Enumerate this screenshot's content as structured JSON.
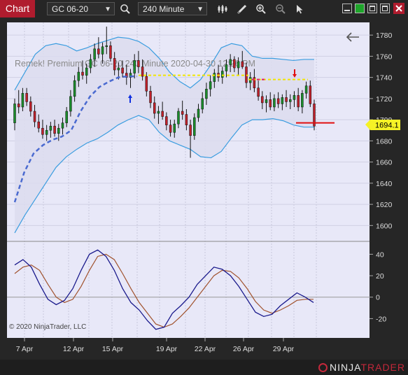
{
  "toolbar": {
    "tab_label": "Chart",
    "instrument": "GC 06-20",
    "interval": "240 Minute"
  },
  "chart": {
    "watermark": "Remek!  Premium   GC 06-20   240 Minute  2020-04-30 12:26 PM",
    "copyright": "© 2020 NinjaTrader, LLC",
    "last_price": "1694.1"
  },
  "branding": {
    "logo_left": "NINJA",
    "logo_right": "TRADER"
  },
  "chart_data": {
    "type": "candlestick",
    "x_tick_labels": [
      "7 Apr",
      "12 Apr",
      "15 Apr",
      "19 Apr",
      "22 Apr",
      "26 Apr",
      "29 Apr"
    ],
    "price_axis": {
      "ticks": [
        1780,
        1760,
        1740,
        1720,
        1700,
        1680,
        1660,
        1640,
        1620,
        1600
      ],
      "range": [
        1585,
        1792
      ]
    },
    "oscillator_axis": {
      "ticks": [
        40,
        20,
        0,
        -20
      ],
      "range": [
        -38,
        52
      ]
    },
    "candles": [
      [
        1697,
        1720,
        1690,
        1715
      ],
      [
        1715,
        1728,
        1706,
        1712
      ],
      [
        1712,
        1730,
        1708,
        1725
      ],
      [
        1725,
        1730,
        1713,
        1717
      ],
      [
        1717,
        1722,
        1703,
        1708
      ],
      [
        1708,
        1714,
        1693,
        1698
      ],
      [
        1698,
        1705,
        1688,
        1692
      ],
      [
        1692,
        1700,
        1682,
        1686
      ],
      [
        1686,
        1695,
        1680,
        1690
      ],
      [
        1690,
        1698,
        1683,
        1694
      ],
      [
        1694,
        1700,
        1684,
        1687
      ],
      [
        1687,
        1696,
        1680,
        1692
      ],
      [
        1692,
        1702,
        1686,
        1697
      ],
      [
        1697,
        1712,
        1693,
        1708
      ],
      [
        1708,
        1728,
        1703,
        1722
      ],
      [
        1722,
        1742,
        1717,
        1737
      ],
      [
        1737,
        1750,
        1731,
        1745
      ],
      [
        1745,
        1756,
        1738,
        1742
      ],
      [
        1742,
        1753,
        1734,
        1749
      ],
      [
        1749,
        1762,
        1744,
        1757
      ],
      [
        1757,
        1772,
        1750,
        1767
      ],
      [
        1767,
        1778,
        1758,
        1762
      ],
      [
        1762,
        1773,
        1753,
        1769
      ],
      [
        1769,
        1788,
        1762,
        1770
      ],
      [
        1770,
        1774,
        1755,
        1758
      ],
      [
        1758,
        1764,
        1742,
        1747
      ],
      [
        1747,
        1754,
        1738,
        1749
      ],
      [
        1749,
        1756,
        1740,
        1744
      ],
      [
        1744,
        1752,
        1733,
        1740
      ],
      [
        1740,
        1748,
        1730,
        1744
      ],
      [
        1744,
        1762,
        1739,
        1756
      ],
      [
        1756,
        1765,
        1744,
        1750
      ],
      [
        1750,
        1757,
        1737,
        1741
      ],
      [
        1741,
        1745,
        1722,
        1727
      ],
      [
        1727,
        1732,
        1711,
        1716
      ],
      [
        1716,
        1722,
        1701,
        1706
      ],
      [
        1706,
        1713,
        1696,
        1708
      ],
      [
        1708,
        1717,
        1700,
        1703
      ],
      [
        1703,
        1707,
        1690,
        1695
      ],
      [
        1695,
        1700,
        1684,
        1688
      ],
      [
        1688,
        1700,
        1683,
        1696
      ],
      [
        1696,
        1711,
        1692,
        1708
      ],
      [
        1708,
        1718,
        1700,
        1705
      ],
      [
        1705,
        1710,
        1690,
        1695
      ],
      [
        1695,
        1700,
        1664,
        1685
      ],
      [
        1685,
        1706,
        1681,
        1702
      ],
      [
        1702,
        1715,
        1698,
        1710
      ],
      [
        1710,
        1726,
        1706,
        1720
      ],
      [
        1720,
        1735,
        1714,
        1729
      ],
      [
        1729,
        1742,
        1722,
        1736
      ],
      [
        1736,
        1748,
        1730,
        1744
      ],
      [
        1744,
        1752,
        1736,
        1740
      ],
      [
        1740,
        1750,
        1734,
        1746
      ],
      [
        1746,
        1757,
        1740,
        1752
      ],
      [
        1752,
        1762,
        1745,
        1757
      ],
      [
        1757,
        1760,
        1745,
        1749
      ],
      [
        1749,
        1759,
        1742,
        1755
      ],
      [
        1755,
        1765,
        1748,
        1750
      ],
      [
        1750,
        1754,
        1730,
        1735
      ],
      [
        1735,
        1745,
        1728,
        1740
      ],
      [
        1740,
        1748,
        1726,
        1730
      ],
      [
        1730,
        1737,
        1718,
        1722
      ],
      [
        1722,
        1727,
        1710,
        1716
      ],
      [
        1716,
        1723,
        1707,
        1719
      ],
      [
        1719,
        1726,
        1709,
        1712
      ],
      [
        1712,
        1724,
        1708,
        1720
      ],
      [
        1720,
        1726,
        1711,
        1715
      ],
      [
        1715,
        1724,
        1709,
        1721
      ],
      [
        1721,
        1728,
        1712,
        1717
      ],
      [
        1717,
        1724,
        1710,
        1719
      ],
      [
        1719,
        1727,
        1712,
        1723
      ],
      [
        1723,
        1730,
        1708,
        1712
      ],
      [
        1712,
        1728,
        1706,
        1725
      ],
      [
        1725,
        1736,
        1720,
        1732
      ],
      [
        1732,
        1737,
        1712,
        1715
      ],
      [
        1715,
        1719,
        1690,
        1694
      ]
    ],
    "upper_band": [
      1728,
      1745,
      1762,
      1770,
      1772,
      1770,
      1765,
      1768,
      1772,
      1775,
      1778,
      1777,
      1774,
      1768,
      1758,
      1745,
      1736,
      1730,
      1738,
      1752,
      1768,
      1772,
      1770,
      1760,
      1758,
      1758,
      1757,
      1756,
      1757,
      1757
    ],
    "lower_band": [
      1593,
      1610,
      1625,
      1640,
      1655,
      1665,
      1672,
      1678,
      1682,
      1688,
      1695,
      1700,
      1704,
      1700,
      1688,
      1680,
      1676,
      1672,
      1665,
      1664,
      1670,
      1683,
      1695,
      1700,
      1700,
      1701,
      1699,
      1695,
      1693,
      1693
    ],
    "dashed_ma": [
      1622,
      1650,
      1668,
      1676,
      1681,
      1684,
      1690,
      1708,
      1722,
      1731,
      1736,
      1740,
      1741,
      1741
    ],
    "yellow_level": 1742,
    "yellow_level_2": 1738,
    "red_level": 1697,
    "osc_fast": [
      30,
      35,
      28,
      12,
      -2,
      -7,
      -3,
      8,
      25,
      40,
      44,
      38,
      25,
      8,
      -5,
      -12,
      -22,
      -30,
      -28,
      -15,
      -8,
      0,
      12,
      20,
      28,
      26,
      20,
      10,
      -2,
      -14,
      -18,
      -16,
      -8,
      -2,
      4,
      0,
      -5
    ],
    "osc_slow": [
      22,
      28,
      30,
      25,
      12,
      0,
      -5,
      -2,
      10,
      25,
      38,
      40,
      35,
      22,
      8,
      -5,
      -15,
      -25,
      -28,
      -25,
      -18,
      -10,
      0,
      10,
      20,
      25,
      24,
      18,
      8,
      -4,
      -12,
      -15,
      -12,
      -8,
      -3,
      -2,
      -2
    ]
  }
}
